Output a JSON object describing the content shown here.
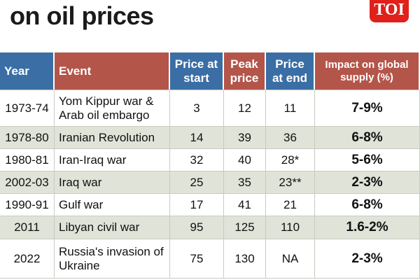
{
  "header": {
    "title": "on oil prices",
    "logo": "TOI"
  },
  "table": {
    "columns": [
      "Year",
      "Event",
      "Price at start",
      "Peak price",
      "Price at end",
      "Impact on global supply (%)"
    ],
    "rows": [
      [
        "1973-74",
        "Yom Kippur war & Arab oil embargo",
        3,
        12,
        11,
        "7-9%"
      ],
      [
        "1978-80",
        "Iranian Revolution",
        14,
        39,
        36,
        "6-8%"
      ],
      [
        "1980-81",
        "Iran-Iraq war",
        32,
        40,
        "28*",
        "5-6%"
      ],
      [
        "2002-03",
        "Iraq war",
        25,
        35,
        "23**",
        "2-3%"
      ],
      [
        "1990-91",
        "Gulf war",
        17,
        41,
        21,
        "6-8%"
      ],
      [
        "2011",
        "Libyan civil war",
        95,
        125,
        110,
        "1.6-2%"
      ],
      [
        "2022",
        "Russia's invasion of Ukraine",
        75,
        130,
        "NA",
        "2-3%"
      ]
    ]
  }
}
